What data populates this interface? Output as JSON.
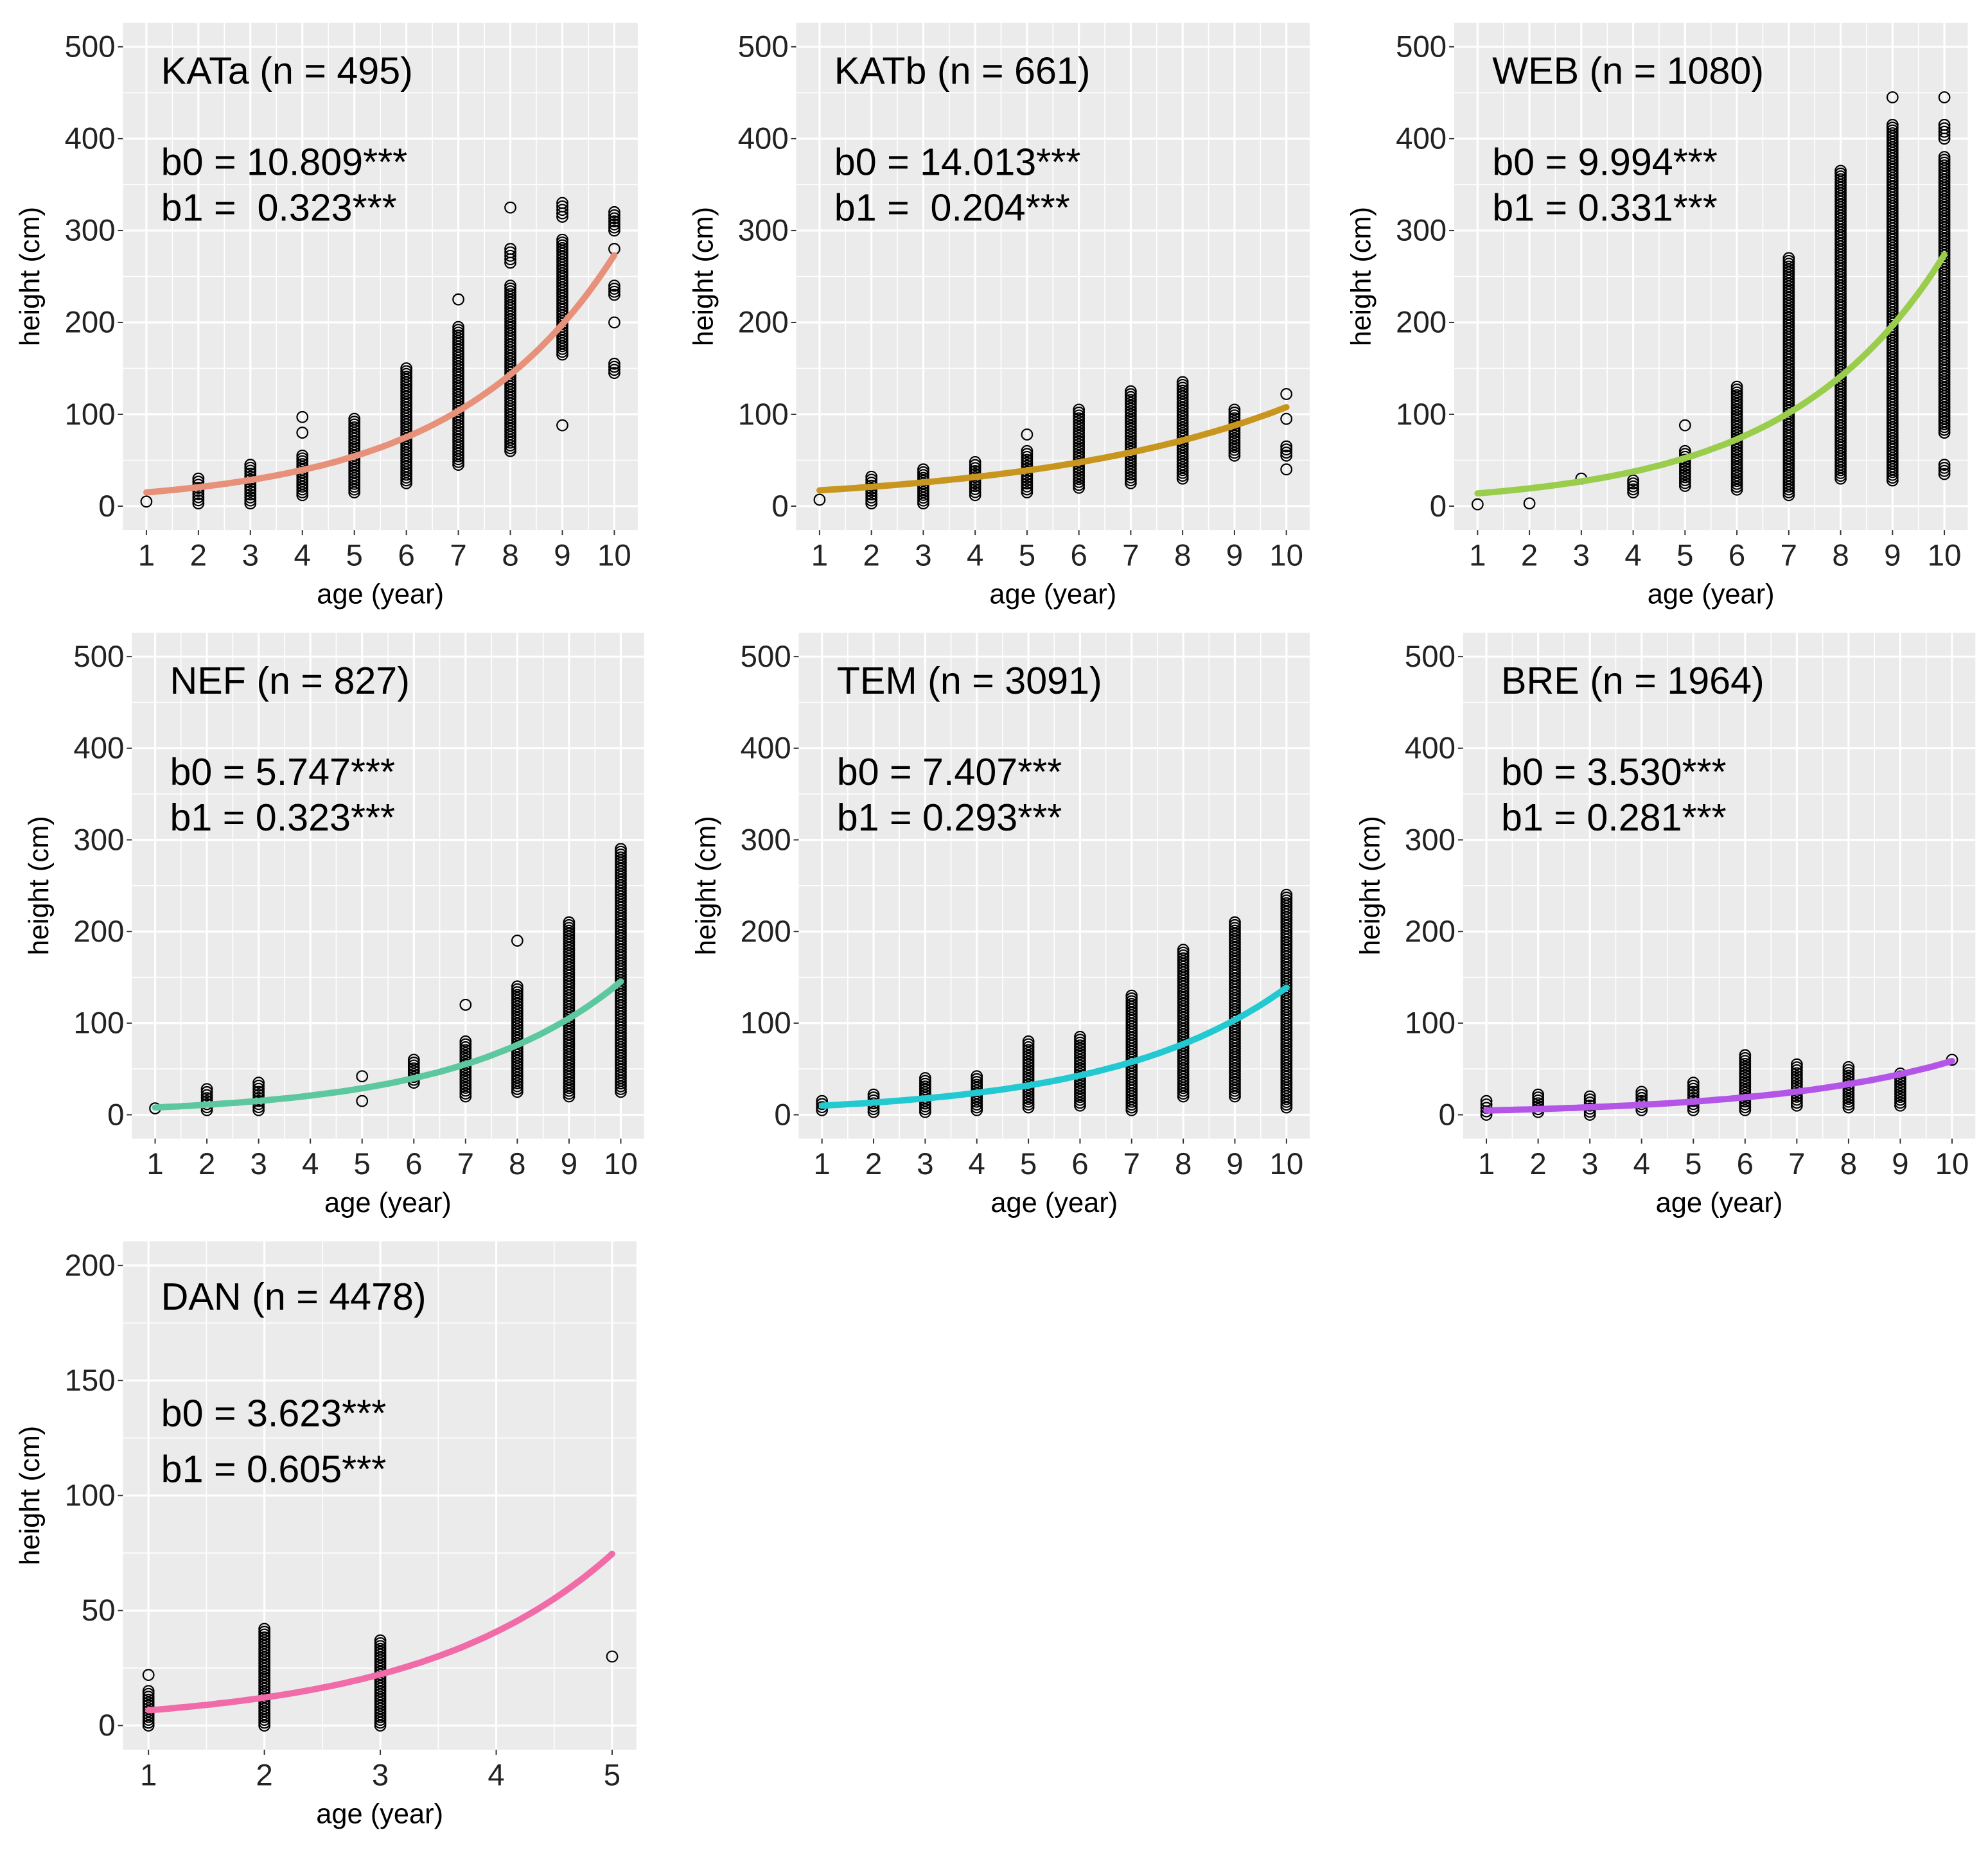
{
  "chart_data": [
    {
      "type": "scatter",
      "title": "KATa (n = 495)",
      "b0_label": "b0 = 10.809***",
      "b1_label": "b1 =  0.323***",
      "b0": 10.809,
      "b1": 0.323,
      "color": "#E8917A",
      "xlabel": "age (year)",
      "ylabel": "height (cm)",
      "xticks": [
        "1",
        "2",
        "3",
        "4",
        "5",
        "6",
        "7",
        "8",
        "9",
        "10"
      ],
      "yticks": [
        "0",
        "100",
        "200",
        "300",
        "400",
        "500"
      ],
      "xlim": [
        1,
        10
      ],
      "ylim": [
        0,
        500
      ],
      "points": [
        [
          1,
          5,
          5
        ],
        [
          2,
          3,
          30
        ],
        [
          3,
          3,
          45
        ],
        [
          4,
          12,
          55
        ],
        [
          4,
          80,
          80
        ],
        [
          4,
          97,
          97
        ],
        [
          5,
          15,
          95
        ],
        [
          6,
          25,
          150
        ],
        [
          7,
          45,
          195
        ],
        [
          7,
          225,
          225
        ],
        [
          8,
          60,
          240
        ],
        [
          8,
          265,
          280
        ],
        [
          8,
          325,
          325
        ],
        [
          9,
          165,
          290
        ],
        [
          9,
          88,
          88
        ],
        [
          9,
          315,
          330
        ],
        [
          10,
          145,
          155
        ],
        [
          10,
          200,
          200
        ],
        [
          10,
          230,
          240
        ],
        [
          10,
          280,
          280
        ],
        [
          10,
          300,
          320
        ]
      ]
    },
    {
      "type": "scatter",
      "title": "KATb (n = 661)",
      "b0_label": "b0 = 14.013***",
      "b1_label": "b1 =  0.204***",
      "b0": 14.013,
      "b1": 0.204,
      "color": "#C8961E",
      "xlabel": "age (year)",
      "ylabel": "height (cm)",
      "xticks": [
        "1",
        "2",
        "3",
        "4",
        "5",
        "6",
        "7",
        "8",
        "9",
        "10"
      ],
      "yticks": [
        "0",
        "100",
        "200",
        "300",
        "400",
        "500"
      ],
      "xlim": [
        1,
        10
      ],
      "ylim": [
        0,
        500
      ],
      "points": [
        [
          1,
          7,
          7
        ],
        [
          2,
          3,
          32
        ],
        [
          3,
          3,
          40
        ],
        [
          4,
          12,
          48
        ],
        [
          5,
          15,
          60
        ],
        [
          5,
          78,
          78
        ],
        [
          6,
          20,
          105
        ],
        [
          7,
          25,
          125
        ],
        [
          8,
          30,
          135
        ],
        [
          9,
          55,
          105
        ],
        [
          10,
          40,
          40
        ],
        [
          10,
          55,
          65
        ],
        [
          10,
          95,
          95
        ],
        [
          10,
          122,
          122
        ]
      ]
    },
    {
      "type": "scatter",
      "title": "WEB (n = 1080)",
      "b0_label": "b0 = 9.994***",
      "b1_label": "b1 = 0.331***",
      "b0": 9.994,
      "b1": 0.331,
      "color": "#9ACD4C",
      "xlabel": "age (year)",
      "ylabel": "height (cm)",
      "xticks": [
        "1",
        "2",
        "3",
        "4",
        "5",
        "6",
        "7",
        "8",
        "9",
        "10"
      ],
      "yticks": [
        "0",
        "100",
        "200",
        "300",
        "400",
        "500"
      ],
      "xlim": [
        1,
        10
      ],
      "ylim": [
        0,
        500
      ],
      "points": [
        [
          1,
          2,
          2
        ],
        [
          2,
          3,
          3
        ],
        [
          3,
          30,
          30
        ],
        [
          4,
          15,
          28
        ],
        [
          5,
          22,
          60
        ],
        [
          5,
          88,
          88
        ],
        [
          6,
          18,
          130
        ],
        [
          7,
          12,
          270
        ],
        [
          8,
          30,
          365
        ],
        [
          9,
          28,
          415
        ],
        [
          9,
          445,
          445
        ],
        [
          10,
          35,
          45
        ],
        [
          10,
          80,
          380
        ],
        [
          10,
          400,
          415
        ],
        [
          10,
          445,
          445
        ]
      ]
    },
    {
      "type": "scatter",
      "title": "NEF (n = 827)",
      "b0_label": "b0 = 5.747***",
      "b1_label": "b1 = 0.323***",
      "b0": 5.747,
      "b1": 0.323,
      "color": "#5DC8A0",
      "xlabel": "age (year)",
      "ylabel": "height (cm)",
      "xticks": [
        "1",
        "2",
        "3",
        "4",
        "5",
        "6",
        "7",
        "8",
        "9",
        "10"
      ],
      "yticks": [
        "0",
        "100",
        "200",
        "300",
        "400",
        "500"
      ],
      "xlim": [
        1,
        10
      ],
      "ylim": [
        0,
        500
      ],
      "points": [
        [
          1,
          7,
          7
        ],
        [
          2,
          5,
          28
        ],
        [
          3,
          5,
          35
        ],
        [
          5,
          15,
          15
        ],
        [
          5,
          42,
          42
        ],
        [
          6,
          35,
          60
        ],
        [
          7,
          20,
          80
        ],
        [
          7,
          120,
          120
        ],
        [
          8,
          25,
          140
        ],
        [
          8,
          190,
          190
        ],
        [
          9,
          20,
          210
        ],
        [
          10,
          25,
          290
        ]
      ]
    },
    {
      "type": "scatter",
      "title": "TEM (n = 3091)",
      "b0_label": "b0 = 7.407***",
      "b1_label": "b1 = 0.293***",
      "b0": 7.407,
      "b1": 0.293,
      "color": "#22C9D0",
      "xlabel": "age (year)",
      "ylabel": "height (cm)",
      "xticks": [
        "1",
        "2",
        "3",
        "4",
        "5",
        "6",
        "7",
        "8",
        "9",
        "10"
      ],
      "yticks": [
        "0",
        "100",
        "200",
        "300",
        "400",
        "500"
      ],
      "xlim": [
        1,
        10
      ],
      "ylim": [
        0,
        500
      ],
      "points": [
        [
          1,
          5,
          15
        ],
        [
          2,
          3,
          22
        ],
        [
          3,
          3,
          40
        ],
        [
          4,
          5,
          42
        ],
        [
          5,
          8,
          80
        ],
        [
          6,
          10,
          85
        ],
        [
          7,
          5,
          130
        ],
        [
          8,
          20,
          180
        ],
        [
          9,
          20,
          210
        ],
        [
          10,
          8,
          240
        ]
      ]
    },
    {
      "type": "scatter",
      "title": "BRE (n = 1964)",
      "b0_label": "b0 = 3.530***",
      "b1_label": "b1 = 0.281***",
      "b0": 3.53,
      "b1": 0.281,
      "color": "#B356E8",
      "xlabel": "age (year)",
      "ylabel": "height (cm)",
      "xticks": [
        "1",
        "2",
        "3",
        "4",
        "5",
        "6",
        "7",
        "8",
        "9",
        "10"
      ],
      "yticks": [
        "0",
        "100",
        "200",
        "300",
        "400",
        "500"
      ],
      "xlim": [
        1,
        10
      ],
      "ylim": [
        0,
        500
      ],
      "points": [
        [
          1,
          0,
          15
        ],
        [
          2,
          3,
          22
        ],
        [
          3,
          0,
          20
        ],
        [
          4,
          5,
          25
        ],
        [
          5,
          5,
          35
        ],
        [
          6,
          5,
          65
        ],
        [
          7,
          10,
          55
        ],
        [
          8,
          8,
          52
        ],
        [
          9,
          10,
          45
        ],
        [
          10,
          60,
          60
        ]
      ]
    },
    {
      "type": "scatter",
      "title": "DAN (n = 4478)",
      "b0_label": "b0 = 3.623***",
      "b1_label": "b1 = 0.605***",
      "b0": 3.623,
      "b1": 0.605,
      "color": "#F06BA8",
      "xlabel": "age (year)",
      "ylabel": "height (cm)",
      "xticks": [
        "1",
        "2",
        "3",
        "4",
        "5"
      ],
      "yticks": [
        "0",
        "50",
        "100",
        "150",
        "200"
      ],
      "xlim": [
        1,
        5
      ],
      "ylim": [
        0,
        200
      ],
      "points": [
        [
          1,
          0,
          15
        ],
        [
          1,
          22,
          22
        ],
        [
          2,
          0,
          42
        ],
        [
          3,
          0,
          37
        ],
        [
          5,
          30,
          30
        ]
      ]
    }
  ]
}
